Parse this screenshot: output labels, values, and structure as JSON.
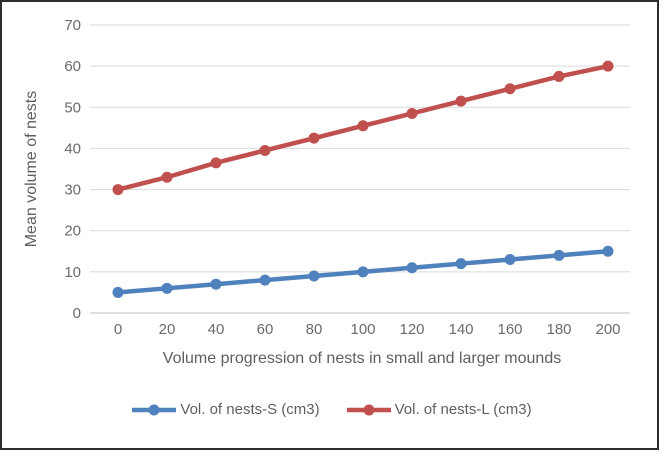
{
  "chart_data": {
    "type": "line",
    "title": "",
    "xlabel": "Volume progression of nests in small and larger mounds",
    "ylabel": "Mean volume of nests",
    "x": [
      0,
      20,
      40,
      60,
      80,
      100,
      120,
      140,
      160,
      180,
      200
    ],
    "xticks": [
      "0",
      "20",
      "40",
      "60",
      "80",
      "100",
      "120",
      "140",
      "160",
      "180",
      "200"
    ],
    "yticks": [
      0,
      10,
      20,
      30,
      40,
      50,
      60,
      70
    ],
    "ylim": [
      0,
      70
    ],
    "grid": true,
    "legend_position": "bottom",
    "series": [
      {
        "name": "Vol. of nests-S (cm3)",
        "color": "#4F81BD",
        "marker": "circle",
        "values": [
          5,
          6,
          7,
          8,
          9,
          10,
          11,
          12,
          13,
          14,
          15
        ]
      },
      {
        "name": "Vol. of nests-L (cm3)",
        "color": "#C0504D",
        "marker": "circle",
        "values": [
          30,
          33,
          36.5,
          39.5,
          42.5,
          45.5,
          48.5,
          51.5,
          54.5,
          57.5,
          60
        ]
      }
    ]
  },
  "colors": {
    "gridline": "#D9D9D9",
    "axis_line": "#BFBFBF",
    "tick_text": "#6b6b6b",
    "title_text": "#5f5f5f",
    "frame_border": "#2e2e2e",
    "background": "#ffffff"
  }
}
